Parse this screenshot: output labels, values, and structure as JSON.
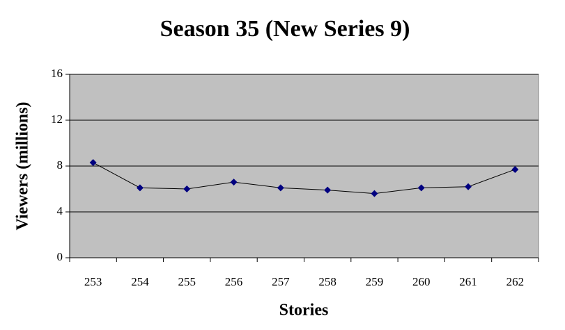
{
  "chart_data": {
    "type": "line",
    "title": "Season 35 (New Series 9)",
    "x_label": "Stories",
    "y_label": "Viewers (millions)",
    "categories": [
      "253",
      "254",
      "255",
      "256",
      "257",
      "258",
      "259",
      "260",
      "261",
      "262"
    ],
    "values": [
      8.3,
      6.1,
      6.0,
      6.6,
      6.1,
      5.9,
      5.6,
      6.1,
      6.2,
      7.7
    ],
    "color": "#000080",
    "line_color": "#000000",
    "plot_background": "#c0c0c0",
    "ylim": [
      0,
      16
    ],
    "yticks": [
      0,
      4,
      8,
      12,
      16
    ],
    "grid": true
  }
}
